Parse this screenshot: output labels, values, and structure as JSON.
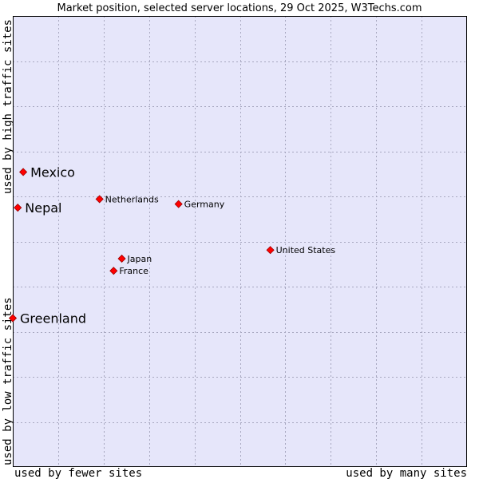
{
  "chart_data": {
    "type": "scatter",
    "title": "Market position, selected server locations, 29 Oct 2025, W3Techs.com",
    "xlabel_left": "used by fewer sites",
    "xlabel_right": "used by many sites",
    "ylabel_bottom": "used by low traffic sites",
    "ylabel_top": "used by high traffic sites",
    "grid": true,
    "xlim": [
      0,
      100
    ],
    "ylim": [
      0,
      100
    ],
    "colors": {
      "plot_background": "#e6e6fa",
      "grid": "#a8a8c0",
      "border": "#000000",
      "marker": "#ff0000",
      "marker_edge": "#990000"
    },
    "points": [
      {
        "name": "Mexico",
        "x": 2.3,
        "y": 65.4,
        "emphasis": true
      },
      {
        "name": "Nepal",
        "x": 1.1,
        "y": 57.5,
        "emphasis": true
      },
      {
        "name": "Greenland",
        "x": 0.0,
        "y": 33.0,
        "emphasis": true
      },
      {
        "name": "Netherlands",
        "x": 19.1,
        "y": 59.4,
        "emphasis": false
      },
      {
        "name": "Germany",
        "x": 36.5,
        "y": 58.3,
        "emphasis": false
      },
      {
        "name": "United States",
        "x": 56.7,
        "y": 48.1,
        "emphasis": false
      },
      {
        "name": "Japan",
        "x": 24.0,
        "y": 46.2,
        "emphasis": false
      },
      {
        "name": "France",
        "x": 22.2,
        "y": 43.5,
        "emphasis": false
      }
    ]
  }
}
